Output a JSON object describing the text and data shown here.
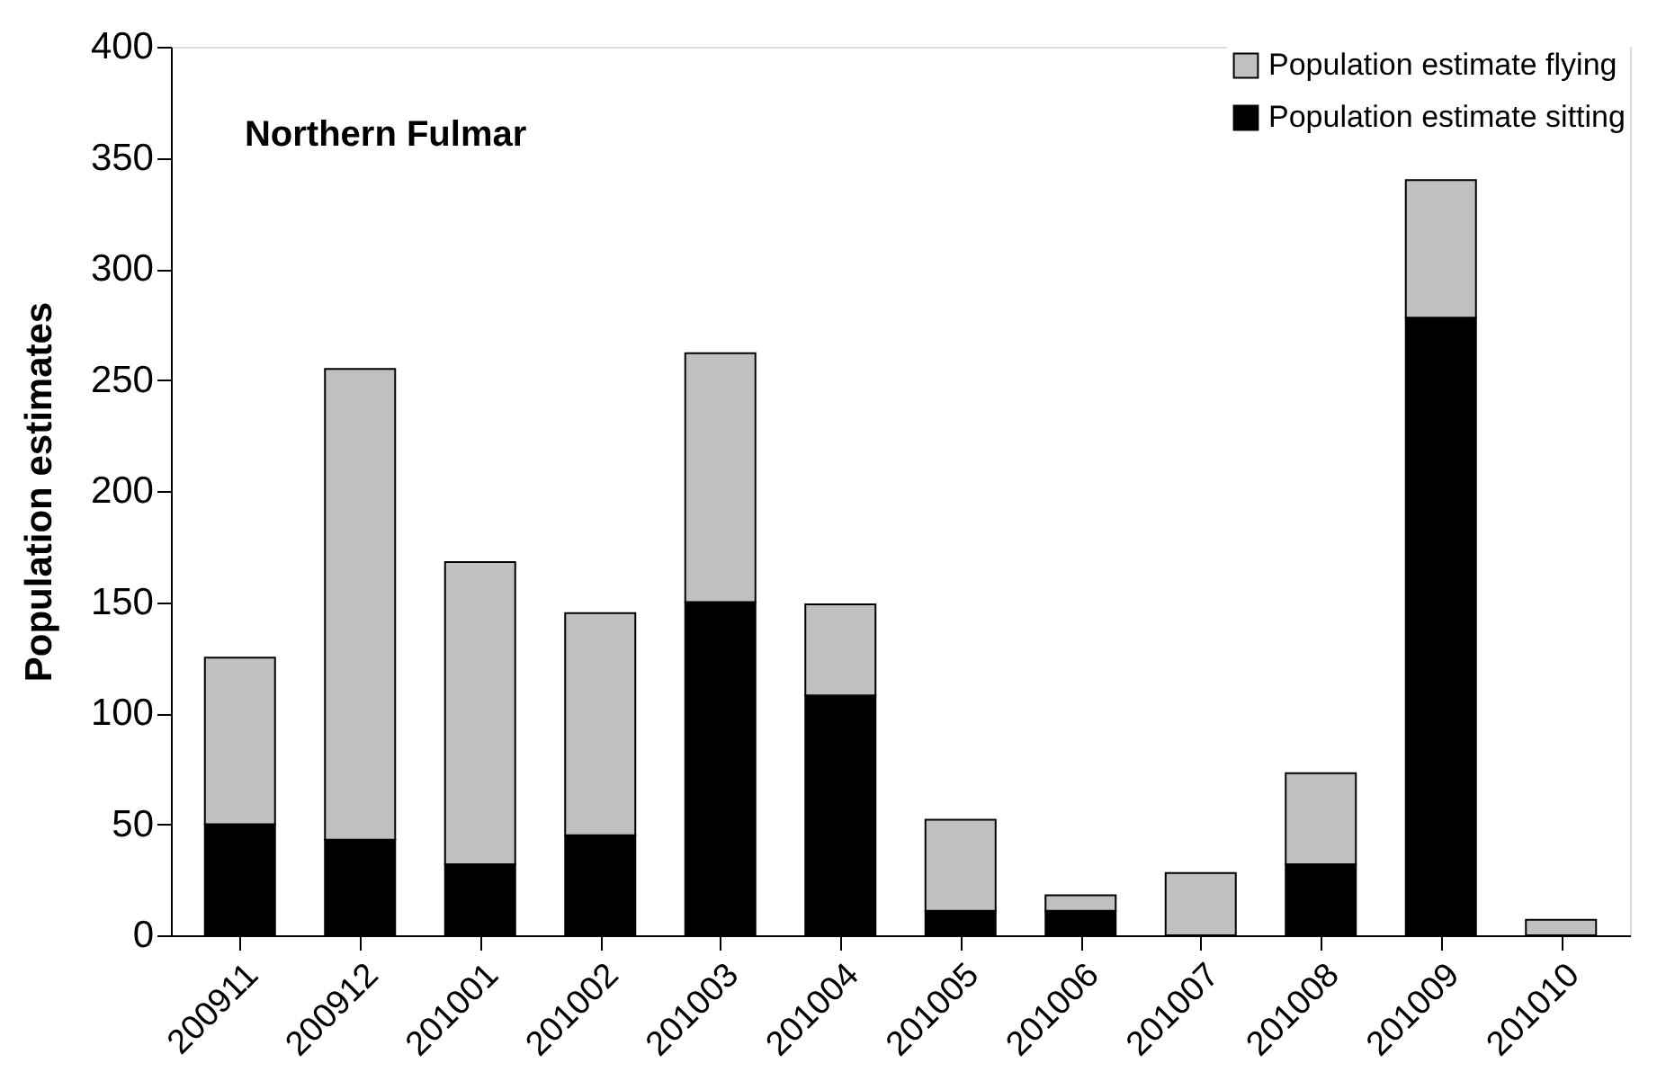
{
  "chart_data": {
    "type": "bar",
    "title": "Northern Fulmar",
    "ylabel": "Population estimates",
    "categories": [
      "200911",
      "200912",
      "201001",
      "201002",
      "201003",
      "201004",
      "201005",
      "201006",
      "201007",
      "201008",
      "201009",
      "201010"
    ],
    "stacked": true,
    "series": [
      {
        "name": "Population estimate sitting",
        "color": "#000000",
        "values": [
          50,
          43,
          32,
          45,
          150,
          108,
          11,
          11,
          0,
          32,
          278,
          0
        ]
      },
      {
        "name": "Population estimate flying",
        "color": "#c0c0c0",
        "values": [
          75,
          212,
          136,
          100,
          112,
          41,
          41,
          7,
          28,
          41,
          62,
          7
        ]
      }
    ],
    "ylim": [
      0,
      400
    ],
    "yticks": [
      0,
      50,
      100,
      150,
      200,
      250,
      300,
      350,
      400
    ],
    "grid": false,
    "legend": "top right"
  }
}
